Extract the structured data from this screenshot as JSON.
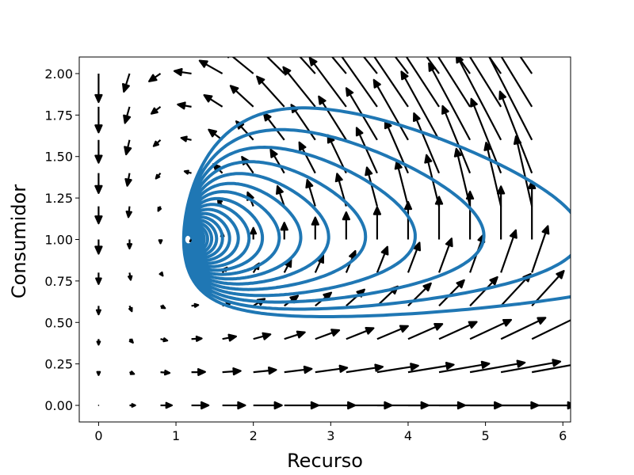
{
  "chart_data": {
    "type": "quiver+line",
    "xlabel": "Recurso",
    "ylabel": "Consumidor",
    "xlim": [
      -0.25,
      6.1
    ],
    "ylim": [
      -0.1,
      2.1
    ],
    "xticks": [
      0,
      1,
      2,
      3,
      4,
      5,
      6
    ],
    "xtick_labels": [
      "0",
      "1",
      "2",
      "3",
      "4",
      "5",
      "6"
    ],
    "yticks": [
      0.0,
      0.25,
      0.5,
      0.75,
      1.0,
      1.25,
      1.5,
      1.75,
      2.0
    ],
    "ytick_labels": [
      "0.00",
      "0.25",
      "0.50",
      "0.75",
      "1.00",
      "1.25",
      "1.50",
      "1.75",
      "2.00"
    ],
    "grid": false,
    "vector_field": {
      "x_start": 0.0,
      "x_step": 0.4,
      "nx": 15,
      "y_start": 0.0,
      "y_step": 0.2,
      "ny": 11,
      "system": "Lotka-Volterra (dR/dt = R - R*C, dC/dt = -C + C*R/1.1)",
      "color": "#000000"
    },
    "trajectory": {
      "start": [
        5.8,
        1.0
      ],
      "equilibrium": [
        1.1,
        1.0
      ],
      "form": "spiral converging toward the equilibrium",
      "color": "#1f77b4"
    }
  }
}
